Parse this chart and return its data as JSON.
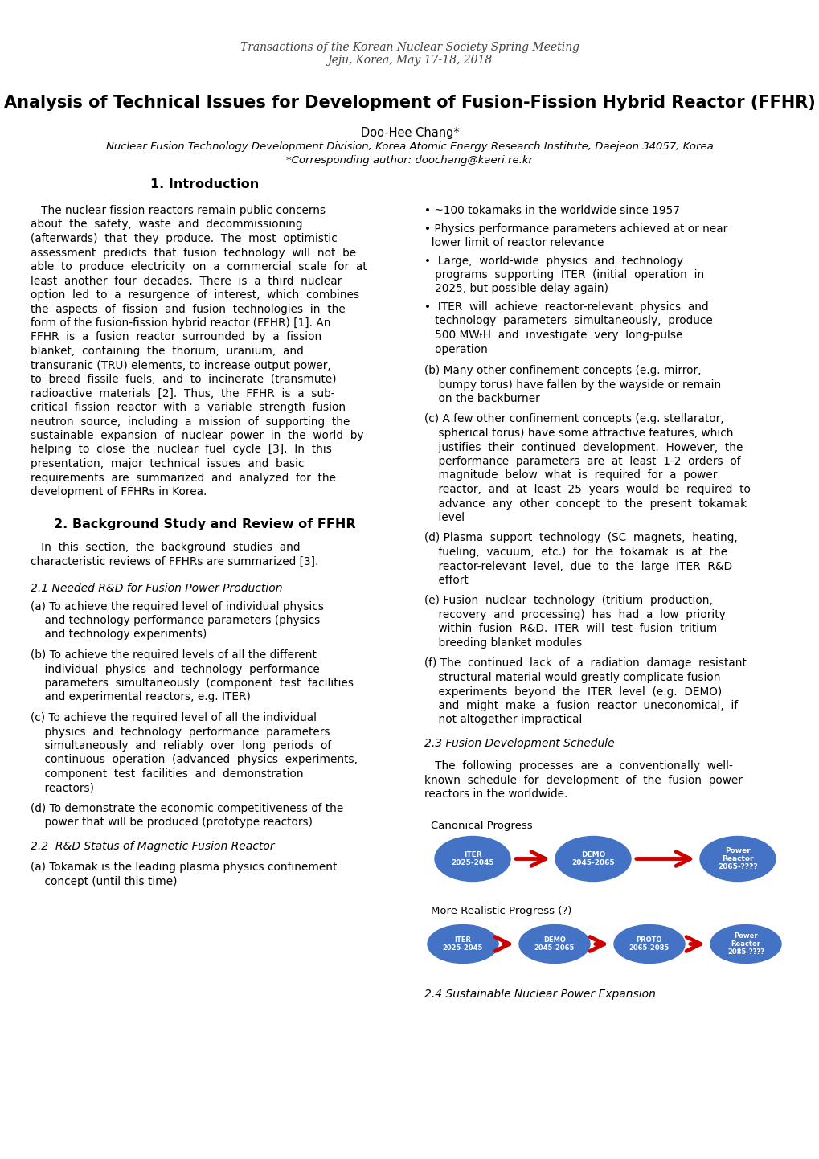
{
  "header_line1": "Transactions of the Korean Nuclear Society Spring Meeting",
  "header_line2": "Jeju, Korea, May 17-18, 2018",
  "title": "Analysis of Technical Issues for Development of Fusion-Fission Hybrid Reactor (FFHR)",
  "author": "Doo-Hee Chang*",
  "affiliation1": "Nuclear Fusion Technology Development Division, Korea Atomic Energy Research Institute, Daejeon 34057, Korea",
  "affiliation2": "*Corresponding author: doochang@kaeri.re.kr",
  "background": "#ffffff",
  "text_color": "#000000",
  "ellipse_color": "#4472c4",
  "arrow_color": "#cc0000"
}
